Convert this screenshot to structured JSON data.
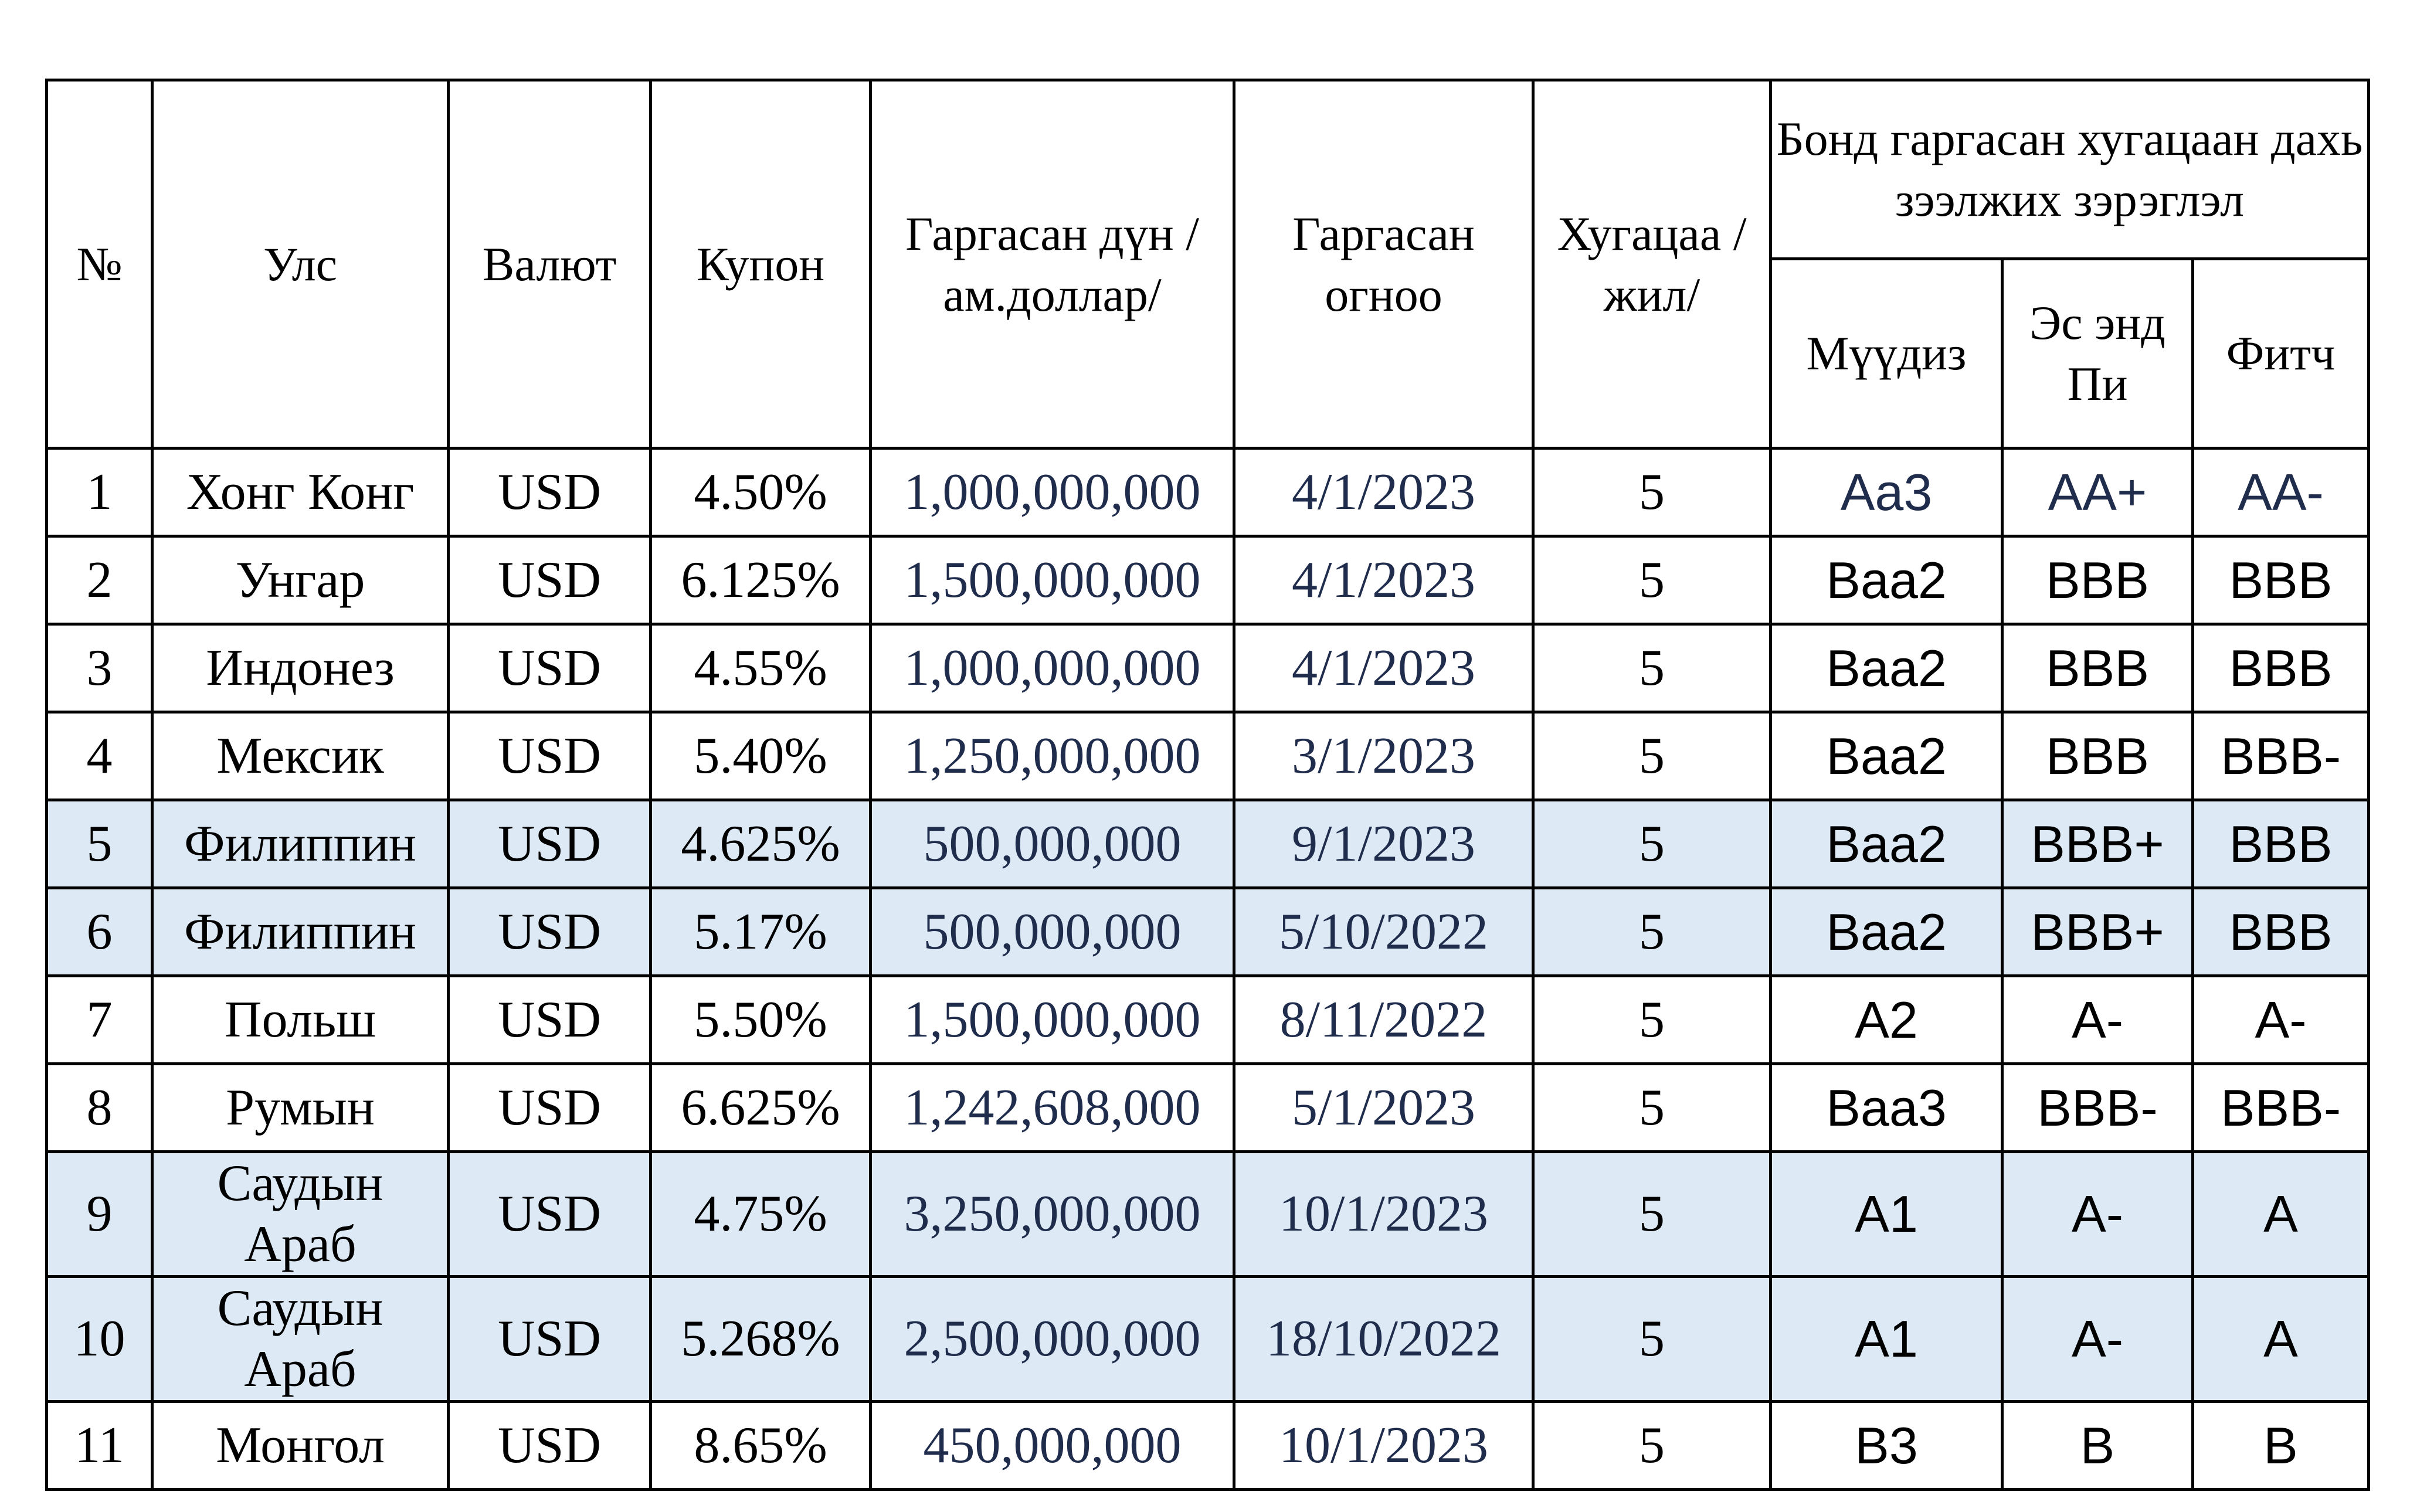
{
  "table": {
    "headers": {
      "no": "№",
      "country": "Улс",
      "currency": "Валют",
      "coupon": "Купон",
      "amount": "Гаргасан дүн /ам.доллар/",
      "issue_date": "Гаргасан огноо",
      "maturity": "Хугацаа /жил/",
      "rating_group": "Бонд гаргасан хугацаан дахь зээлжих зэрэглэл",
      "moodys": "Мүүдиз",
      "sp": "Эс энд Пи",
      "fitch": "Фитч"
    },
    "rows": [
      {
        "no": "1",
        "country": "Хонг Конг",
        "currency": "USD",
        "coupon": "4.50%",
        "amount": "1,000,000,000",
        "date": "4/1/2023",
        "term": "5",
        "moodys": "Aa3",
        "sp": "AA+",
        "fitch": "AA-",
        "shaded": false
      },
      {
        "no": "2",
        "country": "Унгар",
        "currency": "USD",
        "coupon": "6.125%",
        "amount": "1,500,000,000",
        "date": "4/1/2023",
        "term": "5",
        "moodys": "Baa2",
        "sp": "BBB",
        "fitch": "BBB",
        "shaded": false
      },
      {
        "no": "3",
        "country": "Индонез",
        "currency": "USD",
        "coupon": "4.55%",
        "amount": "1,000,000,000",
        "date": "4/1/2023",
        "term": "5",
        "moodys": "Baa2",
        "sp": "BBB",
        "fitch": "BBB",
        "shaded": false
      },
      {
        "no": "4",
        "country": "Мексик",
        "currency": "USD",
        "coupon": "5.40%",
        "amount": "1,250,000,000",
        "date": "3/1/2023",
        "term": "5",
        "moodys": "Baa2",
        "sp": "BBB",
        "fitch": "BBB-",
        "shaded": false
      },
      {
        "no": "5",
        "country": "Филиппин",
        "currency": "USD",
        "coupon": "4.625%",
        "amount": "500,000,000",
        "date": "9/1/2023",
        "term": "5",
        "moodys": "Baa2",
        "sp": "BBB+",
        "fitch": "BBB",
        "shaded": true
      },
      {
        "no": "6",
        "country": "Филиппин",
        "currency": "USD",
        "coupon": "5.17%",
        "amount": "500,000,000",
        "date": "5/10/2022",
        "term": "5",
        "moodys": "Baa2",
        "sp": "BBB+",
        "fitch": "BBB",
        "shaded": true
      },
      {
        "no": "7",
        "country": "Польш",
        "currency": "USD",
        "coupon": "5.50%",
        "amount": "1,500,000,000",
        "date": "8/11/2022",
        "term": "5",
        "moodys": "A2",
        "sp": "A-",
        "fitch": "A-",
        "shaded": false
      },
      {
        "no": "8",
        "country": "Румын",
        "currency": "USD",
        "coupon": "6.625%",
        "amount": "1,242,608,000",
        "date": "5/1/2023",
        "term": "5",
        "moodys": "Baa3",
        "sp": "BBB-",
        "fitch": "BBB-",
        "shaded": false
      },
      {
        "no": "9",
        "country": "Саудын Араб",
        "currency": "USD",
        "coupon": "4.75%",
        "amount": "3,250,000,000",
        "date": "10/1/2023",
        "term": "5",
        "moodys": "A1",
        "sp": "A-",
        "fitch": "A",
        "shaded": true
      },
      {
        "no": "10",
        "country": "Саудын Араб",
        "currency": "USD",
        "coupon": "5.268%",
        "amount": "2,500,000,000",
        "date": "18/10/2022",
        "term": "5",
        "moodys": "A1",
        "sp": "A-",
        "fitch": "A",
        "shaded": true
      },
      {
        "no": "11",
        "country": "Монгол",
        "currency": "USD",
        "coupon": "8.65%",
        "amount": "450,000,000",
        "date": "10/1/2023",
        "term": "5",
        "moodys": "B3",
        "sp": "B",
        "fitch": "B",
        "shaded": false
      }
    ]
  },
  "colors": {
    "shaded_row": "#dde9f4",
    "navy_text": "#1f2c4c",
    "border": "#000000"
  }
}
